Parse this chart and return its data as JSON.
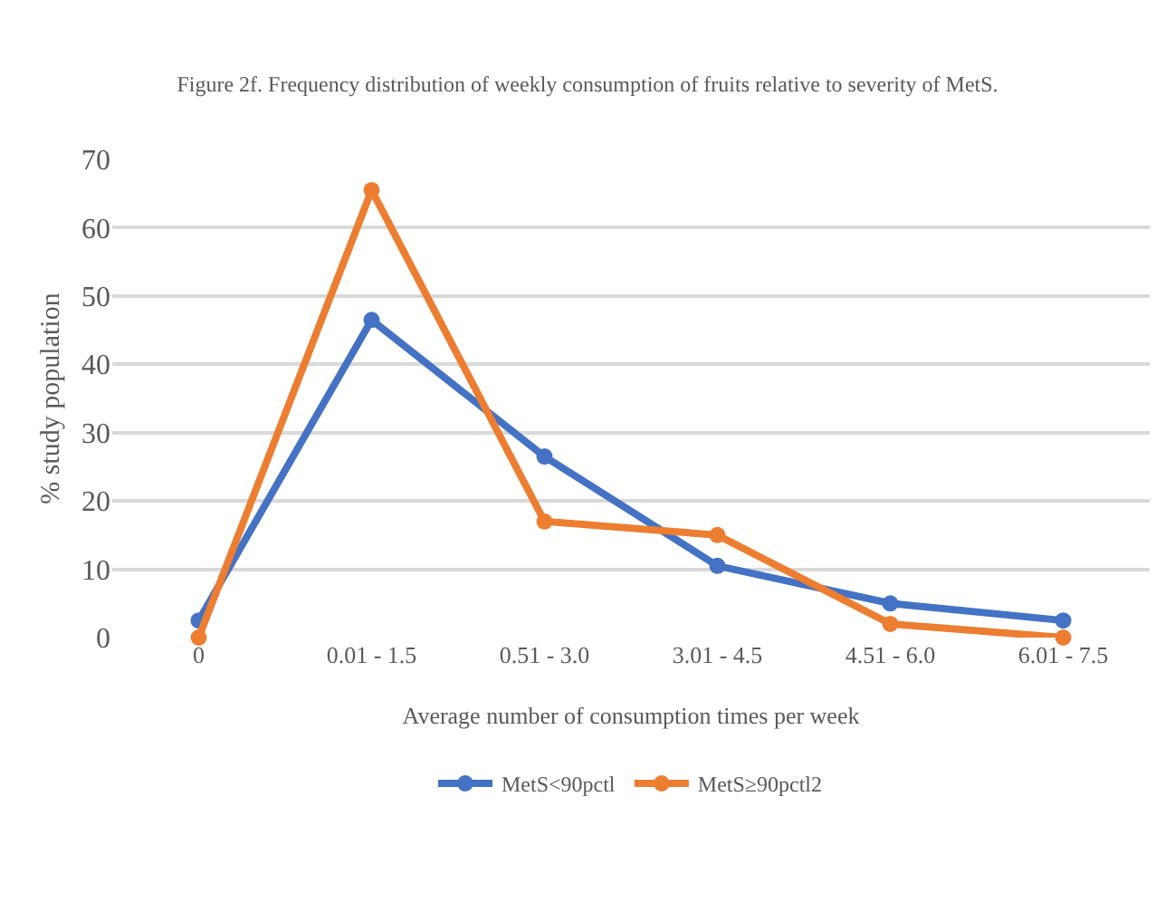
{
  "chart_data": {
    "type": "line",
    "title": "Figure 2f. Frequency distribution of weekly consumption of fruits relative to severity of MetS.",
    "xlabel": "Average number of consumption times per week",
    "ylabel": "% study population",
    "categories": [
      "0",
      "0.01 - 1.5",
      "0.51 - 3.0",
      "3.01 - 4.5",
      "4.51 - 6.0",
      "6.01 - 7.5"
    ],
    "series": [
      {
        "name": "MetS<90pctl",
        "color": "#4472c4",
        "values": [
          2.5,
          46.5,
          26.5,
          10.5,
          5,
          2.5
        ]
      },
      {
        "name": "MetS≥90pctl2",
        "color": "#ed7d31",
        "values": [
          0,
          65.5,
          17,
          15,
          2,
          0
        ]
      }
    ],
    "ylim": [
      0,
      70
    ],
    "yticks": [
      0,
      10,
      20,
      30,
      40,
      50,
      60,
      70
    ],
    "grid": "y",
    "legend": "bottom",
    "marker": "circle",
    "line_style": "solid"
  }
}
